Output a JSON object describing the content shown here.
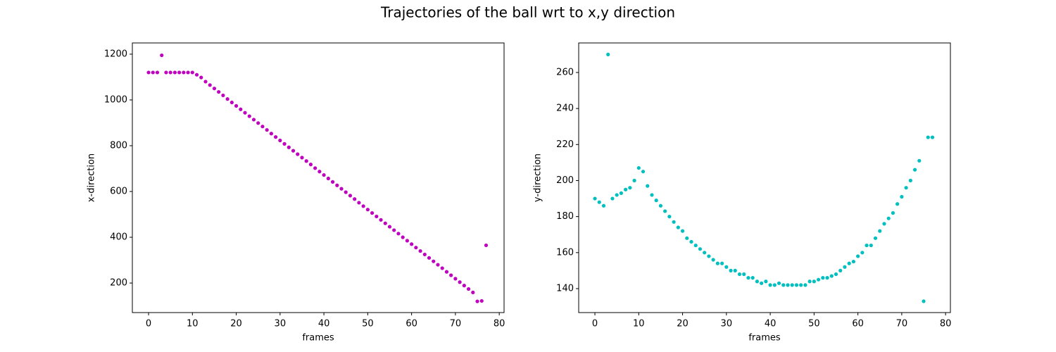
{
  "title": "Trajectories of the ball wrt to x,y direction",
  "chart_data": [
    {
      "type": "scatter",
      "xlabel": "frames",
      "ylabel": "x-direction",
      "x": [
        0,
        1,
        2,
        3,
        4,
        5,
        6,
        7,
        8,
        9,
        10,
        11,
        12,
        13,
        14,
        15,
        16,
        17,
        18,
        19,
        20,
        21,
        22,
        23,
        24,
        25,
        26,
        27,
        28,
        29,
        30,
        31,
        32,
        33,
        34,
        35,
        36,
        37,
        38,
        39,
        40,
        41,
        42,
        43,
        44,
        45,
        46,
        47,
        48,
        49,
        50,
        51,
        52,
        53,
        54,
        55,
        56,
        57,
        58,
        59,
        60,
        61,
        62,
        63,
        64,
        65,
        66,
        67,
        68,
        69,
        70,
        71,
        72,
        73,
        74,
        75,
        76,
        77
      ],
      "values": [
        1120,
        1120,
        1120,
        1195,
        1120,
        1120,
        1120,
        1120,
        1120,
        1120,
        1120,
        1110,
        1098,
        1080,
        1065,
        1050,
        1035,
        1020,
        1004,
        989,
        974,
        959,
        944,
        929,
        914,
        899,
        884,
        869,
        853,
        838,
        823,
        808,
        793,
        778,
        763,
        748,
        733,
        718,
        702,
        687,
        672,
        657,
        642,
        627,
        612,
        597,
        582,
        567,
        551,
        536,
        521,
        506,
        491,
        476,
        461,
        446,
        431,
        416,
        400,
        385,
        370,
        355,
        340,
        325,
        310,
        295,
        280,
        265,
        249,
        234,
        219,
        204,
        189,
        174,
        159,
        120,
        122,
        365
      ],
      "color": "#bf00bf",
      "xlim": [
        -3.7,
        81.1
      ],
      "ylim": [
        71,
        1249
      ],
      "xticks": [
        0,
        10,
        20,
        30,
        40,
        50,
        60,
        70,
        80
      ],
      "yticks": [
        200,
        400,
        600,
        800,
        1000,
        1200
      ]
    },
    {
      "type": "scatter",
      "xlabel": "frames",
      "ylabel": "y-direction",
      "x": [
        0,
        1,
        2,
        3,
        4,
        5,
        6,
        7,
        8,
        9,
        10,
        11,
        12,
        13,
        14,
        15,
        16,
        17,
        18,
        19,
        20,
        21,
        22,
        23,
        24,
        25,
        26,
        27,
        28,
        29,
        30,
        31,
        32,
        33,
        34,
        35,
        36,
        37,
        38,
        39,
        40,
        41,
        42,
        43,
        44,
        45,
        46,
        47,
        48,
        49,
        50,
        51,
        52,
        53,
        54,
        55,
        56,
        57,
        58,
        59,
        60,
        61,
        62,
        63,
        64,
        65,
        66,
        67,
        68,
        69,
        70,
        71,
        72,
        73,
        74,
        75,
        76,
        77
      ],
      "values": [
        190,
        188,
        186,
        270,
        190,
        192,
        193,
        195,
        196,
        200,
        207,
        205,
        197,
        192,
        189,
        186,
        183,
        180,
        177,
        174,
        172,
        168,
        166,
        164,
        162,
        160,
        158,
        156,
        154,
        154,
        152,
        150,
        150,
        148,
        148,
        146,
        146,
        144,
        143,
        144,
        142,
        142,
        143,
        142,
        142,
        142,
        142,
        142,
        142,
        144,
        144,
        145,
        146,
        146,
        147,
        148,
        150,
        152,
        154,
        155,
        158,
        160,
        164,
        164,
        168,
        172,
        176,
        179,
        182,
        187,
        191,
        196,
        200,
        206,
        211,
        133,
        224,
        224
      ],
      "color": "#00bfbf",
      "xlim": [
        -3.7,
        81.1
      ],
      "ylim": [
        126.7,
        276.4
      ],
      "xticks": [
        0,
        10,
        20,
        30,
        40,
        50,
        60,
        70,
        80
      ],
      "yticks": [
        140,
        160,
        180,
        200,
        220,
        240,
        260
      ]
    }
  ]
}
